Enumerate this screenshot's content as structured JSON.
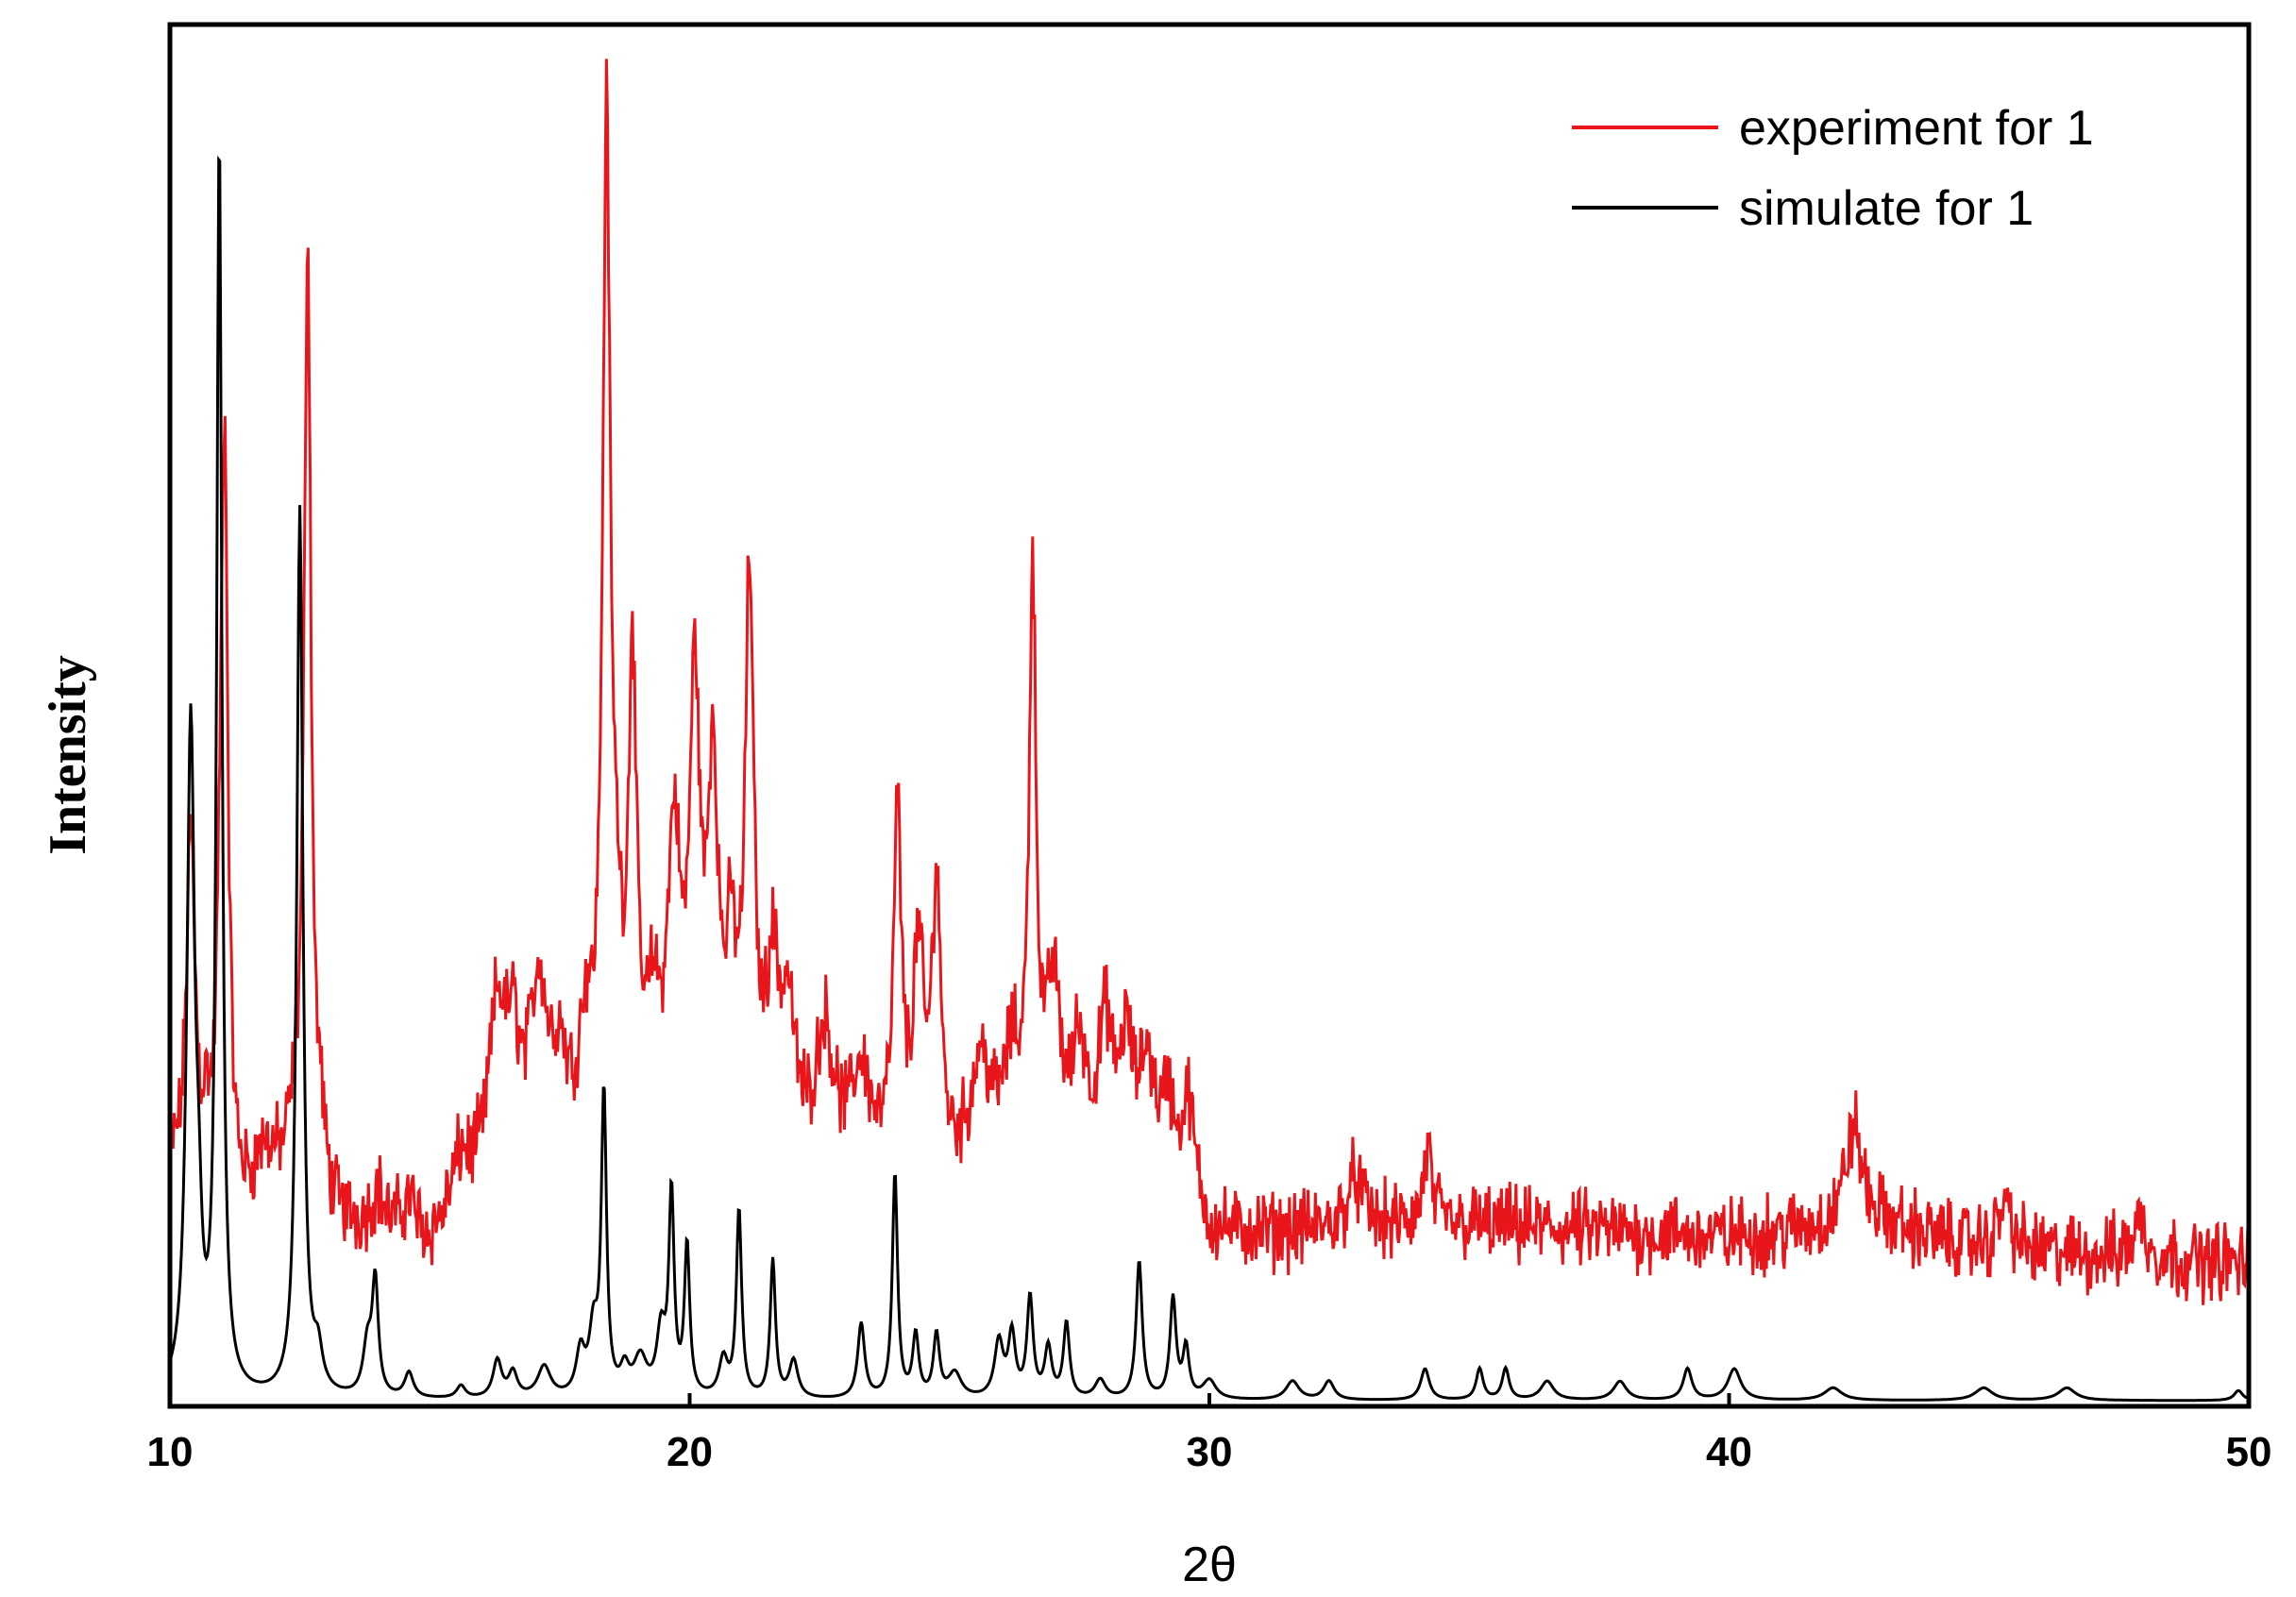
{
  "chart_data": {
    "type": "line",
    "title": "",
    "xlabel": "2θ",
    "ylabel": "Intensity",
    "xlim": [
      10,
      50
    ],
    "ylim": [
      0,
      100
    ],
    "x_ticks": [
      "10",
      "20",
      "30",
      "40",
      "50"
    ],
    "y_ticks_visible": false,
    "grid": false,
    "legend_position": "top-right",
    "legend": [
      "experiment for 1",
      "simulate for 1"
    ],
    "series": [
      {
        "name": "experiment for 1",
        "color": "#e8161b",
        "baseline": 17,
        "noise": 2.2,
        "peaks": [
          [
            10.1,
            4,
            0.12
          ],
          [
            10.4,
            30,
            0.11
          ],
          [
            10.7,
            5,
            0.1
          ],
          [
            10.95,
            9,
            0.07
          ],
          [
            11.05,
            60,
            0.08
          ],
          [
            11.8,
            2.5,
            0.2
          ],
          [
            12.4,
            4,
            0.15
          ],
          [
            12.65,
            76,
            0.08
          ],
          [
            12.9,
            5,
            0.1
          ],
          [
            14.0,
            3,
            0.15
          ],
          [
            14.6,
            3,
            0.15
          ],
          [
            15.6,
            4,
            0.2
          ],
          [
            16.3,
            13,
            0.2
          ],
          [
            16.6,
            8,
            0.15
          ],
          [
            17.1,
            13,
            0.2
          ],
          [
            17.5,
            6,
            0.15
          ],
          [
            18.0,
            8,
            0.15
          ],
          [
            18.4,
            78,
            0.09
          ],
          [
            18.6,
            10,
            0.12
          ],
          [
            18.9,
            36,
            0.09
          ],
          [
            19.3,
            8,
            0.15
          ],
          [
            19.7,
            22,
            0.14
          ],
          [
            20.1,
            33,
            0.12
          ],
          [
            20.45,
            27,
            0.12
          ],
          [
            20.8,
            12,
            0.12
          ],
          [
            21.15,
            43,
            0.1
          ],
          [
            21.6,
            13,
            0.15
          ],
          [
            21.9,
            10,
            0.15
          ],
          [
            22.6,
            10,
            0.2
          ],
          [
            23.3,
            7,
            0.2
          ],
          [
            24.0,
            27,
            0.09
          ],
          [
            24.4,
            16,
            0.12
          ],
          [
            24.75,
            22,
            0.1
          ],
          [
            25.6,
            8,
            0.2
          ],
          [
            26.2,
            7,
            0.2
          ],
          [
            26.6,
            45,
            0.08
          ],
          [
            27.0,
            12,
            0.15
          ],
          [
            27.5,
            8,
            0.15
          ],
          [
            28.0,
            10,
            0.15
          ],
          [
            28.4,
            9,
            0.15
          ],
          [
            28.8,
            8,
            0.15
          ],
          [
            29.2,
            6,
            0.15
          ],
          [
            29.6,
            8,
            0.15
          ],
          [
            32.8,
            4,
            0.2
          ],
          [
            34.2,
            6,
            0.1
          ],
          [
            42.4,
            8,
            0.2
          ],
          [
            45.3,
            4,
            0.15
          ],
          [
            47.9,
            3,
            0.15
          ]
        ],
        "envelope": [
          [
            10,
            -4
          ],
          [
            11.5,
            -2
          ],
          [
            12,
            0
          ],
          [
            13,
            -3
          ],
          [
            15,
            -5
          ],
          [
            16,
            -1
          ],
          [
            17,
            2
          ],
          [
            20,
            4
          ],
          [
            22,
            2
          ],
          [
            25,
            1
          ],
          [
            27,
            3
          ],
          [
            29,
            1
          ],
          [
            30,
            -4
          ],
          [
            35,
            -3
          ],
          [
            40,
            -4
          ],
          [
            43,
            -3
          ],
          [
            45,
            -5
          ],
          [
            50,
            -6
          ]
        ]
      },
      {
        "name": "simulate for 1",
        "color": "#000000",
        "baseline": 0,
        "noise": 0,
        "peaks": [
          [
            10.4,
            53,
            0.09
          ],
          [
            10.55,
            8,
            0.07
          ],
          [
            10.95,
            100,
            0.06
          ],
          [
            12.5,
            71,
            0.07
          ],
          [
            12.85,
            3,
            0.1
          ],
          [
            13.8,
            4,
            0.1
          ],
          [
            13.95,
            9,
            0.07
          ],
          [
            14.6,
            2,
            0.1
          ],
          [
            15.6,
            1,
            0.1
          ],
          [
            16.3,
            3,
            0.1
          ],
          [
            16.6,
            2,
            0.1
          ],
          [
            17.2,
            2.5,
            0.15
          ],
          [
            17.9,
            3.5,
            0.1
          ],
          [
            18.15,
            5,
            0.1
          ],
          [
            18.35,
            24,
            0.06
          ],
          [
            18.75,
            2,
            0.1
          ],
          [
            19.05,
            3,
            0.15
          ],
          [
            19.45,
            5,
            0.1
          ],
          [
            19.65,
            16,
            0.06
          ],
          [
            19.95,
            12,
            0.06
          ],
          [
            20.65,
            3,
            0.1
          ],
          [
            20.95,
            15,
            0.06
          ],
          [
            21.6,
            11,
            0.06
          ],
          [
            22.0,
            3,
            0.1
          ],
          [
            23.3,
            6,
            0.08
          ],
          [
            23.95,
            18,
            0.06
          ],
          [
            24.35,
            5,
            0.07
          ],
          [
            24.75,
            5,
            0.07
          ],
          [
            25.1,
            2,
            0.15
          ],
          [
            25.95,
            4.5,
            0.1
          ],
          [
            26.2,
            5,
            0.08
          ],
          [
            26.55,
            8,
            0.07
          ],
          [
            26.9,
            4,
            0.08
          ],
          [
            27.25,
            6,
            0.07
          ],
          [
            27.9,
            1.5,
            0.12
          ],
          [
            28.65,
            11,
            0.07
          ],
          [
            29.3,
            8,
            0.07
          ],
          [
            29.55,
            4,
            0.07
          ],
          [
            30.0,
            1.5,
            0.15
          ],
          [
            31.6,
            1.5,
            0.15
          ],
          [
            32.3,
            1.5,
            0.12
          ],
          [
            34.15,
            2.5,
            0.1
          ],
          [
            35.2,
            2.5,
            0.08
          ],
          [
            35.7,
            2.5,
            0.08
          ],
          [
            36.5,
            1.5,
            0.15
          ],
          [
            37.9,
            1.5,
            0.15
          ],
          [
            39.2,
            2.5,
            0.1
          ],
          [
            40.1,
            2.5,
            0.15
          ],
          [
            42.0,
            1,
            0.2
          ],
          [
            44.9,
            1,
            0.2
          ],
          [
            46.5,
            1,
            0.2
          ],
          [
            49.8,
            0.8,
            0.1
          ]
        ]
      }
    ]
  }
}
